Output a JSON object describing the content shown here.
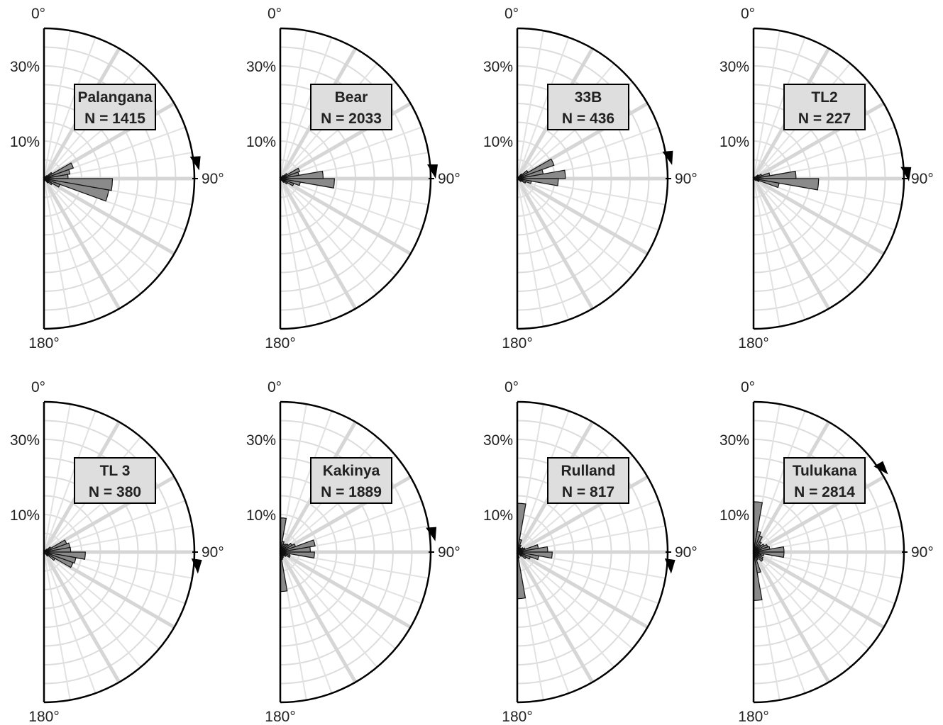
{
  "chart_data": [
    {
      "type": "rose",
      "name": "Palangana",
      "n_label": "N = 1415",
      "range": [
        0,
        40
      ],
      "ticks": [
        {
          "label": "30%",
          "value": 30
        },
        {
          "label": "10%",
          "value": 10
        }
      ],
      "angle_labels": [
        "0°",
        "90°",
        "180°"
      ],
      "bins_deg": [
        [
          0,
          10
        ],
        [
          10,
          20
        ],
        [
          20,
          30
        ],
        [
          30,
          40
        ],
        [
          40,
          50
        ],
        [
          50,
          60
        ],
        [
          60,
          70
        ],
        [
          70,
          80
        ],
        [
          80,
          90
        ],
        [
          90,
          100
        ],
        [
          100,
          110
        ],
        [
          110,
          120
        ],
        [
          120,
          130
        ],
        [
          130,
          140
        ],
        [
          140,
          150
        ],
        [
          150,
          160
        ],
        [
          160,
          170
        ],
        [
          170,
          180
        ]
      ],
      "values": [
        0,
        0,
        0,
        0.6,
        1,
        2.5,
        8.3,
        7,
        6.4,
        18.2,
        17.5,
        4.5,
        2.5,
        1.5,
        0.6,
        0,
        0,
        0
      ],
      "mean_direction_deg": 87
    },
    {
      "type": "rose",
      "name": "Bear",
      "n_label": "N = 2033",
      "range": [
        0,
        40
      ],
      "ticks": [
        {
          "label": "30%",
          "value": 30
        },
        {
          "label": "10%",
          "value": 10
        }
      ],
      "angle_labels": [
        "0°",
        "90°",
        "180°"
      ],
      "bins_deg": [
        [
          0,
          10
        ],
        [
          10,
          20
        ],
        [
          20,
          30
        ],
        [
          30,
          40
        ],
        [
          40,
          50
        ],
        [
          50,
          60
        ],
        [
          60,
          70
        ],
        [
          70,
          80
        ],
        [
          80,
          90
        ],
        [
          90,
          100
        ],
        [
          100,
          110
        ],
        [
          110,
          120
        ],
        [
          120,
          130
        ],
        [
          130,
          140
        ],
        [
          140,
          150
        ],
        [
          150,
          160
        ],
        [
          160,
          170
        ],
        [
          170,
          180
        ]
      ],
      "values": [
        0,
        0,
        0,
        0.5,
        1.1,
        2.1,
        5.5,
        5,
        11.4,
        14.4,
        5.4,
        3.8,
        2.2,
        1.3,
        0.5,
        0,
        0,
        0
      ],
      "mean_direction_deg": 90
    },
    {
      "type": "rose",
      "name": "33B",
      "n_label": "N = 436",
      "range": [
        0,
        40
      ],
      "ticks": [
        {
          "label": "30%",
          "value": 30
        },
        {
          "label": "10%",
          "value": 10
        }
      ],
      "angle_labels": [
        "0°",
        "90°",
        "180°"
      ],
      "bins_deg": [
        [
          0,
          10
        ],
        [
          10,
          20
        ],
        [
          20,
          30
        ],
        [
          30,
          40
        ],
        [
          40,
          50
        ],
        [
          50,
          60
        ],
        [
          60,
          70
        ],
        [
          70,
          80
        ],
        [
          80,
          90
        ],
        [
          90,
          100
        ],
        [
          100,
          110
        ],
        [
          110,
          120
        ],
        [
          120,
          130
        ],
        [
          130,
          140
        ],
        [
          140,
          150
        ],
        [
          150,
          160
        ],
        [
          160,
          170
        ],
        [
          170,
          180
        ]
      ],
      "values": [
        0,
        0,
        0,
        0.5,
        1.6,
        3.3,
        10.4,
        7,
        12.8,
        10.9,
        3.8,
        2.4,
        1.2,
        0.4,
        0,
        0,
        0,
        0
      ],
      "mean_direction_deg": 85
    },
    {
      "type": "rose",
      "name": "TL2",
      "n_label": "N = 227",
      "range": [
        0,
        40
      ],
      "ticks": [
        {
          "label": "30%",
          "value": 30
        },
        {
          "label": "10%",
          "value": 10
        }
      ],
      "angle_labels": [
        "0°",
        "90°",
        "180°"
      ],
      "bins_deg": [
        [
          0,
          10
        ],
        [
          10,
          20
        ],
        [
          20,
          30
        ],
        [
          30,
          40
        ],
        [
          40,
          50
        ],
        [
          50,
          60
        ],
        [
          60,
          70
        ],
        [
          70,
          80
        ],
        [
          80,
          90
        ],
        [
          90,
          100
        ],
        [
          100,
          110
        ],
        [
          110,
          120
        ],
        [
          120,
          130
        ],
        [
          130,
          140
        ],
        [
          140,
          150
        ],
        [
          150,
          160
        ],
        [
          160,
          170
        ],
        [
          170,
          180
        ]
      ],
      "values": [
        0,
        0,
        0,
        0,
        0.6,
        1.5,
        2.3,
        4.4,
        11.3,
        17.3,
        6.9,
        1.6,
        0.8,
        0.4,
        0,
        0,
        0,
        0
      ],
      "mean_direction_deg": 91
    },
    {
      "type": "rose",
      "name": "TL 3",
      "n_label": "N = 380",
      "range": [
        0,
        40
      ],
      "ticks": [
        {
          "label": "30%",
          "value": 30
        },
        {
          "label": "10%",
          "value": 10
        }
      ],
      "angle_labels": [
        "0°",
        "90°",
        "180°"
      ],
      "bins_deg": [
        [
          0,
          10
        ],
        [
          10,
          20
        ],
        [
          20,
          30
        ],
        [
          30,
          40
        ],
        [
          40,
          50
        ],
        [
          50,
          60
        ],
        [
          60,
          70
        ],
        [
          70,
          80
        ],
        [
          80,
          90
        ],
        [
          90,
          100
        ],
        [
          100,
          110
        ],
        [
          110,
          120
        ],
        [
          120,
          130
        ],
        [
          130,
          140
        ],
        [
          140,
          150
        ],
        [
          150,
          160
        ],
        [
          160,
          170
        ],
        [
          170,
          180
        ]
      ],
      "values": [
        0,
        0,
        0,
        0.5,
        1,
        2.1,
        6.4,
        7,
        7.1,
        11,
        8.6,
        8.2,
        3.4,
        1.4,
        0.4,
        0,
        0,
        0
      ],
      "mean_direction_deg": 98
    },
    {
      "type": "rose",
      "name": "Kakinya",
      "n_label": "N = 1889",
      "range": [
        0,
        40
      ],
      "ticks": [
        {
          "label": "30%",
          "value": 30
        },
        {
          "label": "10%",
          "value": 10
        }
      ],
      "angle_labels": [
        "0°",
        "90°",
        "180°"
      ],
      "bins_deg": [
        [
          0,
          10
        ],
        [
          10,
          20
        ],
        [
          20,
          30
        ],
        [
          30,
          40
        ],
        [
          40,
          50
        ],
        [
          50,
          60
        ],
        [
          60,
          70
        ],
        [
          70,
          80
        ],
        [
          80,
          90
        ],
        [
          90,
          100
        ],
        [
          100,
          110
        ],
        [
          110,
          120
        ],
        [
          120,
          130
        ],
        [
          130,
          140
        ],
        [
          140,
          150
        ],
        [
          150,
          160
        ],
        [
          160,
          170
        ],
        [
          170,
          180
        ]
      ],
      "values": [
        9.1,
        2.9,
        2.2,
        2.5,
        2.8,
        3.6,
        4.3,
        9.4,
        8,
        9.1,
        2.6,
        2.8,
        1.8,
        1.4,
        1,
        1.6,
        2,
        10.5
      ],
      "mean_direction_deg": 86
    },
    {
      "type": "rose",
      "name": "Rulland",
      "n_label": "N = 817",
      "range": [
        0,
        40
      ],
      "ticks": [
        {
          "label": "30%",
          "value": 30
        },
        {
          "label": "10%",
          "value": 10
        }
      ],
      "angle_labels": [
        "0°",
        "90°",
        "180°"
      ],
      "bins_deg": [
        [
          0,
          10
        ],
        [
          10,
          20
        ],
        [
          20,
          30
        ],
        [
          30,
          40
        ],
        [
          40,
          50
        ],
        [
          50,
          60
        ],
        [
          60,
          70
        ],
        [
          70,
          80
        ],
        [
          80,
          90
        ],
        [
          90,
          100
        ],
        [
          100,
          110
        ],
        [
          110,
          120
        ],
        [
          120,
          130
        ],
        [
          130,
          140
        ],
        [
          140,
          150
        ],
        [
          150,
          160
        ],
        [
          160,
          170
        ],
        [
          170,
          180
        ]
      ],
      "values": [
        13,
        3.4,
        2,
        1.3,
        1.4,
        1.8,
        2.2,
        5.7,
        8.1,
        9.3,
        5.8,
        3.7,
        2.7,
        1.5,
        0.7,
        0.6,
        1.6,
        12.4
      ],
      "mean_direction_deg": 98
    },
    {
      "type": "rose",
      "name": "Tulukana",
      "n_label": "N = 2814",
      "range": [
        0,
        40
      ],
      "ticks": [
        {
          "label": "30%",
          "value": 30
        },
        {
          "label": "10%",
          "value": 10
        }
      ],
      "angle_labels": [
        "0°",
        "90°",
        "180°"
      ],
      "bins_deg": [
        [
          0,
          10
        ],
        [
          10,
          20
        ],
        [
          20,
          30
        ],
        [
          30,
          40
        ],
        [
          40,
          50
        ],
        [
          50,
          60
        ],
        [
          60,
          70
        ],
        [
          70,
          80
        ],
        [
          80,
          90
        ],
        [
          90,
          100
        ],
        [
          100,
          110
        ],
        [
          110,
          120
        ],
        [
          120,
          130
        ],
        [
          130,
          140
        ],
        [
          140,
          150
        ],
        [
          150,
          160
        ],
        [
          160,
          170
        ],
        [
          170,
          180
        ]
      ],
      "values": [
        13.4,
        5.6,
        4.6,
        3.2,
        2.5,
        3.3,
        4,
        4.4,
        8.1,
        8.1,
        2.8,
        2.2,
        2.9,
        3.2,
        1.9,
        2.3,
        5.6,
        12.9
      ],
      "mean_direction_deg": 60
    }
  ]
}
